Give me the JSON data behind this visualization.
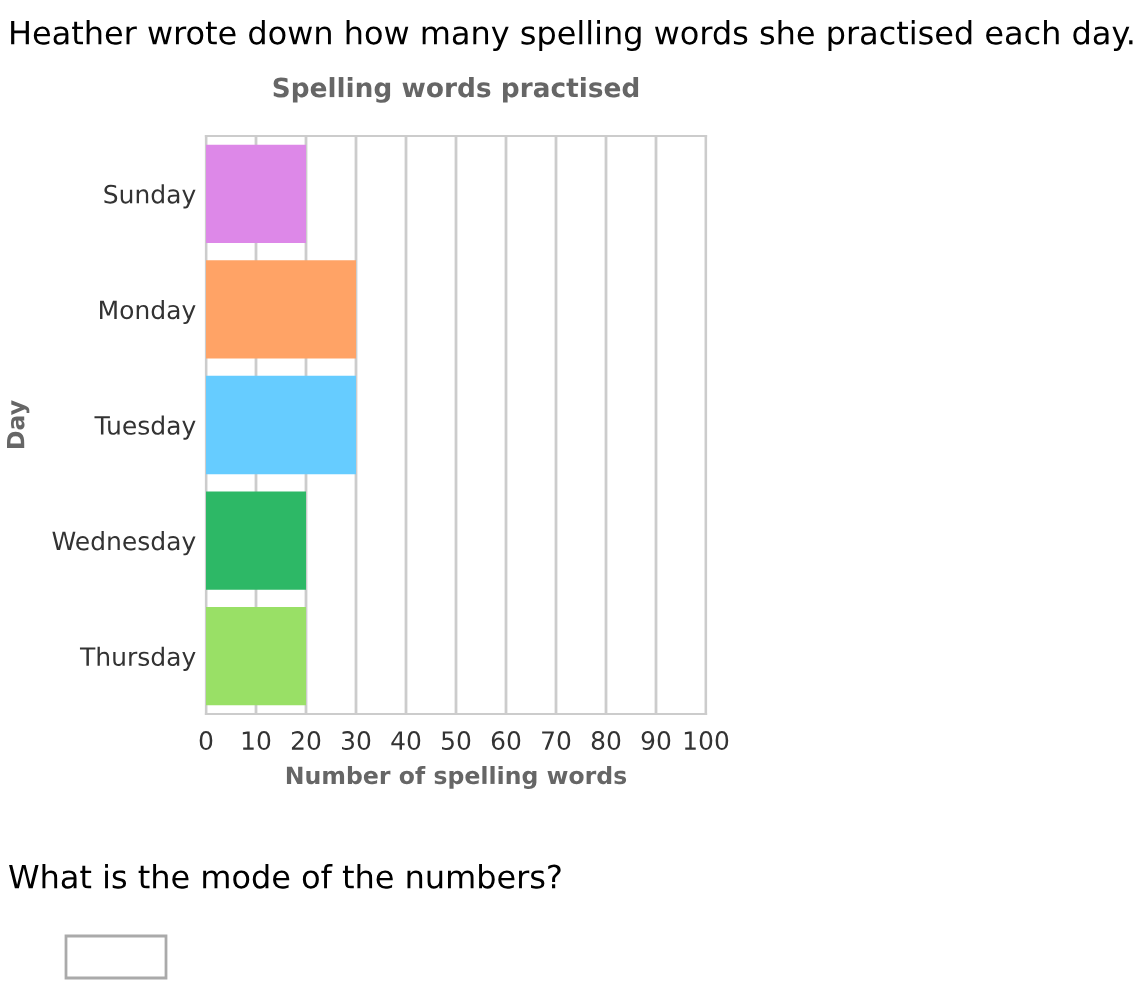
{
  "chart_data": {
    "type": "bar",
    "orientation": "horizontal",
    "title": "Spelling words practised",
    "xlabel": "Number of spelling words",
    "ylabel": "Day",
    "categories": [
      "Sunday",
      "Monday",
      "Tuesday",
      "Wednesday",
      "Thursday"
    ],
    "values": [
      20,
      30,
      30,
      20,
      20
    ],
    "colors": [
      "#dd88e8",
      "#ffa366",
      "#66ccff",
      "#2db866",
      "#99e066"
    ],
    "xlim": [
      0,
      100
    ],
    "xticks": [
      0,
      10,
      20,
      30,
      40,
      50,
      60,
      70,
      80,
      90,
      100
    ],
    "grid": "x",
    "annotations": [
      "Heather wrote down how many spelling words she practised each day.",
      "What is the mode of the numbers?"
    ]
  }
}
